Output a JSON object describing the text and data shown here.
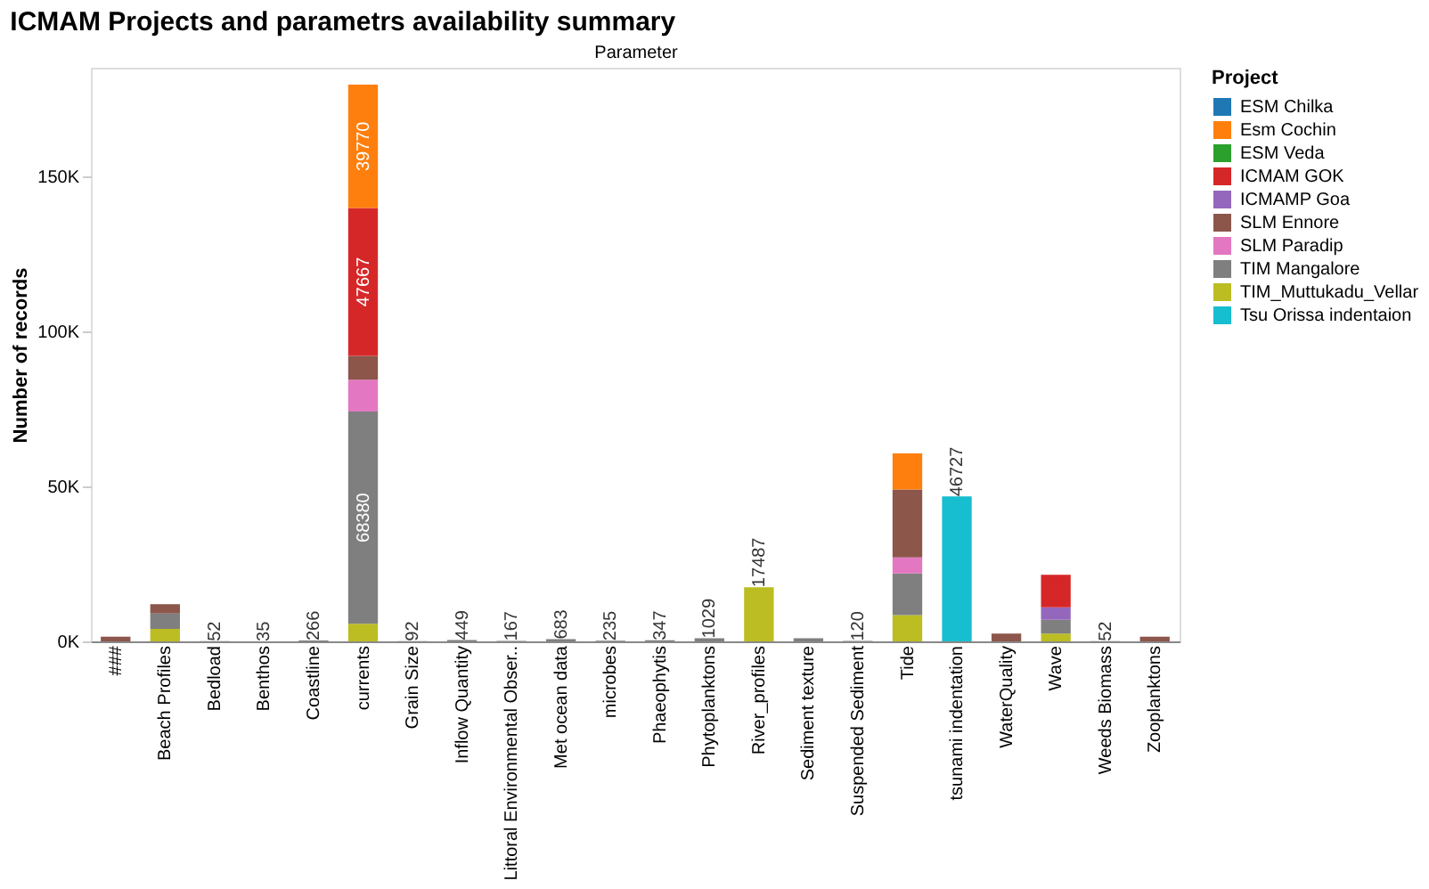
{
  "chart_data": {
    "type": "bar",
    "stacked": true,
    "title": "ICMAM Projects and parametrs availability summary",
    "xlabel": "Parameter",
    "ylabel": "Number of records",
    "legend_title": "Project",
    "legend": "right",
    "grid": false,
    "categories": [
      "###",
      "Beach Profiles",
      "Bedload",
      "Benthos",
      "Coastline",
      "currents",
      "Grain Size",
      "Inflow Quantity",
      "Littoral Environmental Obser..",
      "Met ocean data",
      "microbes",
      "Phaeophytis",
      "Phytoplanktons",
      "River_profiles",
      "Sediment texture",
      "Suspended Sediment",
      "Tide",
      "tsunami indentation",
      "WaterQuality",
      "Wave",
      "Weeds Biomass",
      "Zooplanktons"
    ],
    "ylim": [
      0,
      185000
    ],
    "yticks": [
      {
        "value": 0,
        "label": "0K"
      },
      {
        "value": 50000,
        "label": "50K"
      },
      {
        "value": 100000,
        "label": "100K"
      },
      {
        "value": 150000,
        "label": "150K"
      }
    ],
    "series": [
      {
        "name": "Tsu Orissa indentaion",
        "color": "#17becf",
        "values": [
          null,
          null,
          null,
          null,
          null,
          null,
          null,
          null,
          null,
          null,
          null,
          null,
          null,
          null,
          null,
          null,
          null,
          46727,
          null,
          null,
          null,
          null
        ],
        "value_labels": [
          null,
          null,
          null,
          null,
          null,
          null,
          null,
          null,
          null,
          null,
          null,
          null,
          null,
          null,
          null,
          null,
          null,
          "46727",
          null,
          null,
          null,
          null
        ]
      },
      {
        "name": "TIM_Muttukadu_Vellar",
        "color": "#bcbd22",
        "values": [
          null,
          4000,
          null,
          null,
          null,
          5700,
          null,
          null,
          null,
          null,
          null,
          null,
          null,
          17487,
          null,
          null,
          8500,
          null,
          null,
          2500,
          null,
          null
        ],
        "value_labels": [
          null,
          null,
          null,
          null,
          null,
          null,
          null,
          null,
          null,
          null,
          null,
          null,
          null,
          "17487",
          null,
          null,
          null,
          null,
          null,
          null,
          null,
          null
        ]
      },
      {
        "name": "TIM Mangalore",
        "color": "#7f7f7f",
        "values": [
          null,
          5000,
          52,
          35,
          266,
          68380,
          92,
          449,
          167,
          683,
          235,
          347,
          1029,
          null,
          1000,
          120,
          13400,
          null,
          null,
          4500,
          52,
          null
        ],
        "value_labels": [
          null,
          null,
          "52",
          "35",
          "266",
          "68380",
          "92",
          "449",
          "167",
          "683",
          "235",
          "347",
          "1029",
          null,
          null,
          "120",
          null,
          null,
          null,
          null,
          "52",
          null
        ]
      },
      {
        "name": "SLM Paradip",
        "color": "#e377c2",
        "values": [
          null,
          null,
          null,
          null,
          null,
          10300,
          null,
          null,
          null,
          null,
          null,
          null,
          null,
          null,
          null,
          null,
          5200,
          null,
          null,
          null,
          null,
          null
        ]
      },
      {
        "name": "SLM Ennore",
        "color": "#8c564b",
        "values": [
          1500,
          3000,
          null,
          null,
          null,
          7700,
          null,
          null,
          null,
          null,
          null,
          null,
          null,
          null,
          null,
          null,
          21900,
          null,
          2500,
          null,
          null,
          1500
        ]
      },
      {
        "name": "ICMAMP Goa",
        "color": "#9467bd",
        "values": [
          null,
          null,
          null,
          null,
          null,
          null,
          null,
          null,
          null,
          null,
          null,
          null,
          null,
          null,
          null,
          null,
          null,
          null,
          null,
          4000,
          null,
          null
        ]
      },
      {
        "name": "ICMAM GOK",
        "color": "#d62728",
        "values": [
          null,
          null,
          null,
          null,
          null,
          47667,
          null,
          null,
          null,
          null,
          null,
          null,
          null,
          null,
          null,
          null,
          null,
          null,
          null,
          10500,
          null,
          null
        ],
        "value_labels": [
          null,
          null,
          null,
          null,
          null,
          "47667",
          null,
          null,
          null,
          null,
          null,
          null,
          null,
          null,
          null,
          null,
          null,
          null,
          null,
          null,
          null,
          null
        ]
      },
      {
        "name": "ESM Veda",
        "color": "#2ca02c",
        "values": [
          null,
          null,
          null,
          null,
          null,
          null,
          null,
          null,
          null,
          null,
          null,
          null,
          null,
          null,
          null,
          null,
          null,
          null,
          null,
          null,
          null,
          null
        ]
      },
      {
        "name": "Esm Cochin",
        "color": "#ff7f0e",
        "values": [
          null,
          null,
          null,
          null,
          null,
          39770,
          null,
          null,
          null,
          null,
          null,
          null,
          null,
          null,
          null,
          null,
          11600,
          null,
          null,
          null,
          null,
          null
        ],
        "value_labels": [
          null,
          null,
          null,
          null,
          null,
          "39770",
          null,
          null,
          null,
          null,
          null,
          null,
          null,
          null,
          null,
          null,
          null,
          null,
          null,
          null,
          null,
          null
        ]
      },
      {
        "name": "ESM Chilka",
        "color": "#1f77b4",
        "values": [
          null,
          null,
          null,
          null,
          null,
          null,
          null,
          null,
          null,
          null,
          null,
          null,
          null,
          null,
          null,
          null,
          null,
          null,
          null,
          null,
          null,
          null
        ]
      }
    ]
  }
}
